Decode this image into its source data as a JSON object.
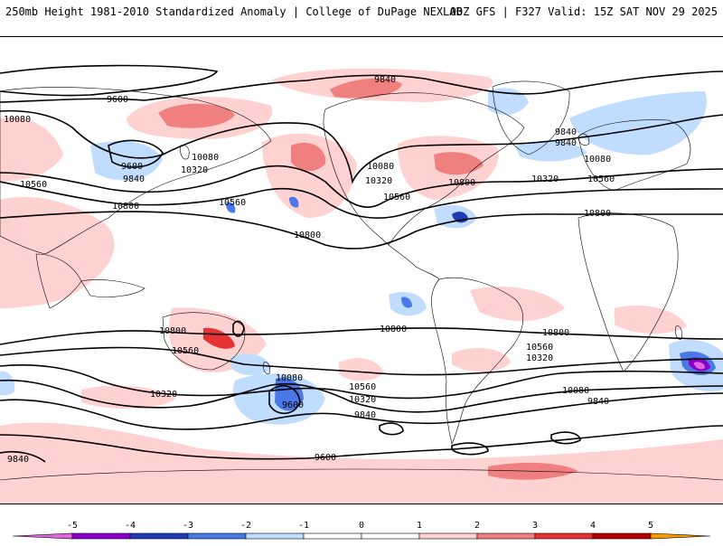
{
  "header": {
    "title_left": "250mb Height 1981-2010 Standardized Anomaly | College of DuPage NEXLAB",
    "title_right": "00Z GFS | F327 Valid: 15Z SAT NOV 29 2025"
  },
  "map": {
    "contour_labels": {
      "c1": "9840",
      "c2": "9600",
      "c3": "10080",
      "c4": "9600",
      "c5": "9840",
      "c6": "10080",
      "c7": "10320",
      "c8": "10560",
      "c9": "10800",
      "c10": "10560",
      "c11": "10800",
      "c12": "10080",
      "c13": "10320",
      "c14": "10560",
      "c15": "10800",
      "c16": "9840",
      "c17": "9840",
      "c18": "10080",
      "c19": "10320",
      "c20": "10560",
      "c21": "10800",
      "c22": "10800",
      "c23": "10560",
      "c24": "10320",
      "c25": "10080",
      "c26": "9600",
      "c27": "10800",
      "c28": "10800",
      "c29": "10560",
      "c30": "10320",
      "c31": "10560",
      "c32": "10320",
      "c33": "9840",
      "c34": "10080",
      "c35": "9840",
      "c36": "9600",
      "c37": "9840"
    }
  },
  "colorbar": {
    "ticks": [
      "-5",
      "-4",
      "-3",
      "-2",
      "-1",
      "0",
      "1",
      "2",
      "3",
      "4",
      "5"
    ],
    "colors": {
      "neg5": "#e066e0",
      "neg4": "#8a00c8",
      "neg3": "#1e3cb4",
      "neg2": "#4a78e6",
      "neg1": "#c0dcff",
      "zero": "#ffffff",
      "pos1": "#ffd2d2",
      "pos2": "#f08080",
      "pos3": "#e63232",
      "pos4": "#b40000",
      "pos5": "#ff9a00"
    }
  }
}
